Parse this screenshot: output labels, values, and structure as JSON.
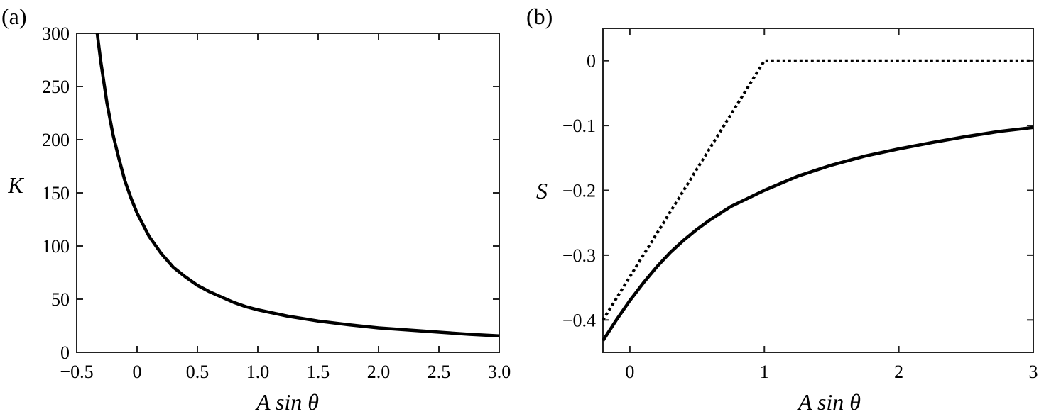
{
  "chart_data": [
    {
      "type": "line",
      "panel_label": "(a)",
      "xlabel": "A sin θ",
      "ylabel": "K",
      "xlim": [
        -0.5,
        3.0
      ],
      "ylim": [
        0,
        300
      ],
      "xticks": [
        "−0.5",
        "0",
        "0.5",
        "1.0",
        "1.5",
        "2.0",
        "2.5",
        "3.0"
      ],
      "xtick_values": [
        -0.5,
        0,
        0.5,
        1.0,
        1.5,
        2.0,
        2.5,
        3.0
      ],
      "yticks": [
        "0",
        "50",
        "100",
        "150",
        "200",
        "250",
        "300"
      ],
      "ytick_values": [
        0,
        50,
        100,
        150,
        200,
        250,
        300
      ],
      "series": [
        {
          "style": "solid",
          "x": [
            -0.33,
            -0.3,
            -0.25,
            -0.2,
            -0.15,
            -0.1,
            -0.05,
            0,
            0.1,
            0.2,
            0.3,
            0.4,
            0.5,
            0.6,
            0.7,
            0.8,
            0.9,
            1.0,
            1.25,
            1.5,
            1.75,
            2.0,
            2.25,
            2.5,
            2.75,
            3.0
          ],
          "y": [
            300,
            273,
            235,
            205,
            182,
            161,
            145,
            131,
            109,
            93,
            80,
            71,
            63,
            57,
            52,
            47,
            43,
            40,
            34,
            29.5,
            26,
            23,
            21,
            19,
            17,
            15.5
          ]
        }
      ]
    },
    {
      "type": "line",
      "panel_label": "(b)",
      "xlabel": "A sin θ",
      "ylabel": "S",
      "xlim": [
        -0.2,
        3
      ],
      "ylim": [
        -0.45,
        0.05
      ],
      "xticks": [
        "0",
        "1",
        "2",
        "3"
      ],
      "xtick_values": [
        0,
        1,
        2,
        3
      ],
      "yticks": [
        "−0.4",
        "−0.3",
        "−0.2",
        "−0.1",
        "0"
      ],
      "ytick_values": [
        -0.4,
        -0.3,
        -0.2,
        -0.1,
        0
      ],
      "series": [
        {
          "style": "solid",
          "x": [
            -0.2,
            -0.1,
            0,
            0.1,
            0.2,
            0.3,
            0.4,
            0.5,
            0.6,
            0.75,
            1.0,
            1.25,
            1.5,
            1.75,
            2.0,
            2.25,
            2.5,
            2.75,
            3.0
          ],
          "y": [
            -0.432,
            -0.4,
            -0.37,
            -0.343,
            -0.318,
            -0.296,
            -0.277,
            -0.26,
            -0.245,
            -0.225,
            -0.2,
            -0.178,
            -0.161,
            -0.147,
            -0.136,
            -0.126,
            -0.117,
            -0.109,
            -0.103
          ]
        },
        {
          "style": "dotted",
          "x": [
            -0.2,
            1.0,
            3.0
          ],
          "y": [
            -0.4,
            0,
            0
          ]
        }
      ]
    }
  ]
}
